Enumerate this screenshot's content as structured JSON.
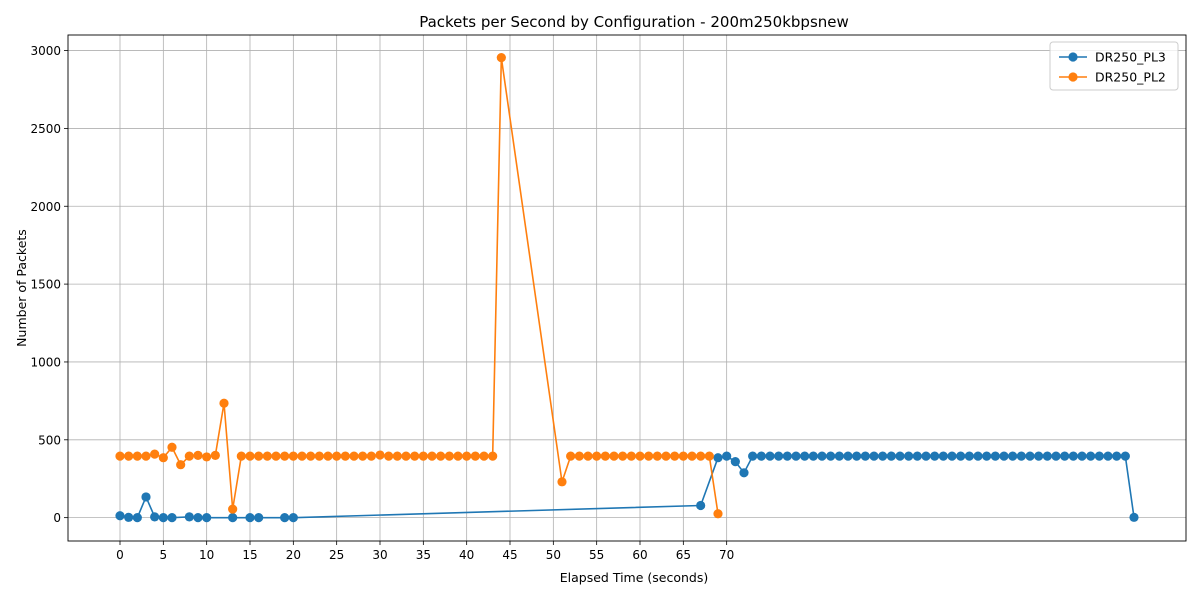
{
  "chart_data": {
    "type": "line",
    "title": "Packets per Second by Configuration - 200m250kbpsnew",
    "xlabel": "Elapsed Time (seconds)",
    "ylabel": "Number of Packets",
    "xlim": [
      -6,
      123
    ],
    "ylim": [
      -150,
      3100
    ],
    "xticks": [
      0,
      5,
      10,
      15,
      20,
      25,
      30,
      35,
      40,
      45,
      50,
      55,
      60,
      65,
      70
    ],
    "yticks": [
      0,
      500,
      1000,
      1500,
      2000,
      2500,
      3000
    ],
    "grid": true,
    "legend_position": "top-right",
    "series": [
      {
        "name": "DR250_PL3",
        "color": "#1f77b4",
        "points": [
          [
            0,
            12
          ],
          [
            1,
            2
          ],
          [
            2,
            0
          ],
          [
            3,
            133
          ],
          [
            4,
            5
          ],
          [
            5,
            0
          ],
          [
            6,
            0
          ],
          [
            8,
            5
          ],
          [
            9,
            0
          ],
          [
            10,
            0
          ],
          [
            13,
            0
          ],
          [
            15,
            0
          ],
          [
            16,
            0
          ],
          [
            19,
            0
          ],
          [
            20,
            0
          ],
          [
            67,
            78
          ],
          [
            69,
            385
          ],
          [
            70,
            395
          ],
          [
            71,
            360
          ],
          [
            72,
            288
          ],
          [
            73,
            395
          ],
          [
            74,
            395
          ],
          [
            75,
            395
          ],
          [
            76,
            395
          ],
          [
            77,
            395
          ],
          [
            78,
            395
          ],
          [
            79,
            395
          ],
          [
            80,
            395
          ],
          [
            81,
            395
          ],
          [
            82,
            395
          ],
          [
            83,
            395
          ],
          [
            84,
            395
          ],
          [
            85,
            395
          ],
          [
            86,
            395
          ],
          [
            87,
            395
          ],
          [
            88,
            395
          ],
          [
            89,
            395
          ],
          [
            90,
            395
          ],
          [
            91,
            395
          ],
          [
            92,
            395
          ],
          [
            93,
            395
          ],
          [
            94,
            395
          ],
          [
            95,
            395
          ],
          [
            96,
            395
          ],
          [
            97,
            395
          ],
          [
            98,
            395
          ],
          [
            99,
            395
          ],
          [
            100,
            395
          ],
          [
            101,
            395
          ],
          [
            102,
            395
          ],
          [
            103,
            395
          ],
          [
            104,
            395
          ],
          [
            105,
            395
          ],
          [
            106,
            395
          ],
          [
            107,
            395
          ],
          [
            108,
            395
          ],
          [
            109,
            395
          ],
          [
            110,
            395
          ],
          [
            111,
            395
          ],
          [
            112,
            395
          ],
          [
            113,
            395
          ],
          [
            114,
            395
          ],
          [
            115,
            395
          ],
          [
            116,
            395
          ],
          [
            117,
            2
          ]
        ]
      },
      {
        "name": "DR250_PL2",
        "color": "#ff7f0e",
        "points": [
          [
            0,
            395
          ],
          [
            1,
            395
          ],
          [
            2,
            395
          ],
          [
            3,
            395
          ],
          [
            4,
            408
          ],
          [
            5,
            385
          ],
          [
            6,
            452
          ],
          [
            7,
            340
          ],
          [
            8,
            395
          ],
          [
            9,
            400
          ],
          [
            10,
            390
          ],
          [
            11,
            400
          ],
          [
            12,
            735
          ],
          [
            13,
            55
          ],
          [
            14,
            395
          ],
          [
            15,
            395
          ],
          [
            16,
            395
          ],
          [
            17,
            395
          ],
          [
            18,
            395
          ],
          [
            19,
            395
          ],
          [
            20,
            395
          ],
          [
            21,
            395
          ],
          [
            22,
            395
          ],
          [
            23,
            395
          ],
          [
            24,
            395
          ],
          [
            25,
            395
          ],
          [
            26,
            395
          ],
          [
            27,
            395
          ],
          [
            28,
            395
          ],
          [
            29,
            395
          ],
          [
            30,
            402
          ],
          [
            31,
            395
          ],
          [
            32,
            395
          ],
          [
            33,
            395
          ],
          [
            34,
            395
          ],
          [
            35,
            395
          ],
          [
            36,
            395
          ],
          [
            37,
            395
          ],
          [
            38,
            395
          ],
          [
            39,
            395
          ],
          [
            40,
            395
          ],
          [
            41,
            395
          ],
          [
            42,
            395
          ],
          [
            43,
            395
          ],
          [
            44,
            2955
          ],
          [
            51,
            230
          ],
          [
            52,
            395
          ],
          [
            53,
            395
          ],
          [
            54,
            395
          ],
          [
            55,
            395
          ],
          [
            56,
            395
          ],
          [
            57,
            395
          ],
          [
            58,
            395
          ],
          [
            59,
            395
          ],
          [
            60,
            395
          ],
          [
            61,
            395
          ],
          [
            62,
            395
          ],
          [
            63,
            395
          ],
          [
            64,
            395
          ],
          [
            65,
            395
          ],
          [
            66,
            395
          ],
          [
            67,
            395
          ],
          [
            68,
            395
          ],
          [
            69,
            25
          ]
        ]
      }
    ]
  }
}
